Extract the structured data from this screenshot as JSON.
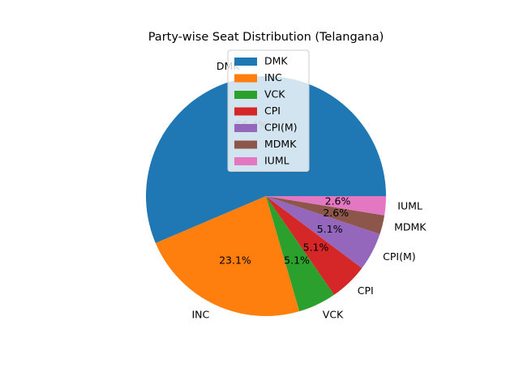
{
  "chart_data": {
    "type": "pie",
    "title": "Party-wise Seat Distribution (Telangana)",
    "labels": [
      "DMK",
      "INC",
      "VCK",
      "CPI",
      "CPI(M)",
      "MDMK",
      "IUML"
    ],
    "percent_labels": [
      "56.4%",
      "23.1%",
      "5.1%",
      "5.1%",
      "5.1%",
      "2.6%",
      "2.6%"
    ],
    "values": [
      22,
      9,
      2,
      2,
      2,
      1,
      1
    ],
    "colors": [
      "#1f77b4",
      "#ff7f0e",
      "#2ca02c",
      "#d62728",
      "#9467bd",
      "#8c564b",
      "#e377c2"
    ],
    "start_angle_deg": 0,
    "direction": "counterclockwise",
    "legend": {
      "placement": "upper-center",
      "entries": [
        "DMK",
        "INC",
        "VCK",
        "CPI",
        "CPI(M)",
        "MDMK",
        "IUML"
      ]
    }
  }
}
